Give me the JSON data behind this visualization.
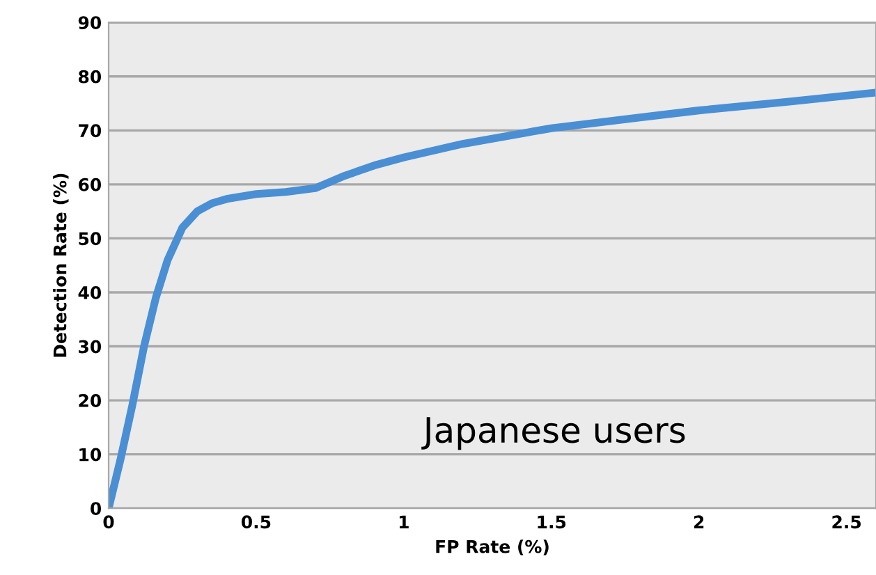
{
  "chart_data": {
    "type": "line",
    "xlabel": "FP Rate (%)",
    "ylabel": "Detection Rate (%)",
    "x": [
      0,
      0.04,
      0.08,
      0.12,
      0.16,
      0.2,
      0.25,
      0.3,
      0.35,
      0.4,
      0.5,
      0.6,
      0.7,
      0.8,
      0.9,
      1.0,
      1.2,
      1.5,
      1.8,
      2.0,
      2.3,
      2.6
    ],
    "series": [
      {
        "color": "#4a8fd4",
        "values": [
          0,
          9,
          19,
          30,
          39,
          46,
          52,
          55,
          56.5,
          57.3,
          58.2,
          58.6,
          59.3,
          61.6,
          63.5,
          65,
          67.5,
          70.4,
          72.4,
          73.7,
          75.3,
          77
        ]
      }
    ],
    "xlim": [
      0,
      2.6
    ],
    "ylim": [
      0,
      90
    ],
    "xticks": [
      0,
      0.5,
      1,
      1.5,
      2,
      2.5
    ],
    "yticks": [
      0,
      10,
      20,
      30,
      40,
      50,
      60,
      70,
      80,
      90
    ],
    "grid": "y",
    "marker": "none",
    "line_style": "solid",
    "annotations": [
      "Japanese users"
    ]
  }
}
